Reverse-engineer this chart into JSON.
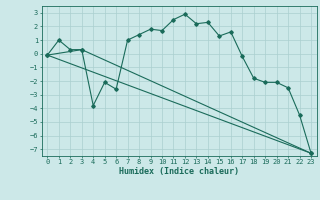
{
  "xlabel": "Humidex (Indice chaleur)",
  "background_color": "#cce8e8",
  "grid_color": "#aacfcf",
  "line_color": "#1a6b5a",
  "xlim": [
    -0.5,
    23.5
  ],
  "ylim": [
    -7.5,
    3.5
  ],
  "yticks": [
    -7,
    -6,
    -5,
    -4,
    -3,
    -2,
    -1,
    0,
    1,
    2,
    3
  ],
  "xticks": [
    0,
    1,
    2,
    3,
    4,
    5,
    6,
    7,
    8,
    9,
    10,
    11,
    12,
    13,
    14,
    15,
    16,
    17,
    18,
    19,
    20,
    21,
    22,
    23
  ],
  "series1_x": [
    0,
    1,
    2,
    3,
    4,
    5,
    6,
    7,
    8,
    9,
    10,
    11,
    12,
    13,
    14,
    15,
    16,
    17,
    18,
    19,
    20,
    21,
    22,
    23
  ],
  "series1_y": [
    -0.1,
    1.0,
    0.3,
    0.3,
    -3.8,
    -2.1,
    -2.6,
    1.0,
    1.4,
    1.8,
    1.7,
    2.5,
    2.9,
    2.2,
    2.3,
    1.3,
    1.6,
    -0.2,
    -1.8,
    -2.1,
    -2.1,
    -2.5,
    -4.5,
    -7.3
  ],
  "series2_x": [
    0,
    3,
    23
  ],
  "series2_y": [
    -0.1,
    0.3,
    -7.3
  ],
  "series3_x": [
    0,
    23
  ],
  "series3_y": [
    -0.1,
    -7.3
  ],
  "tick_labelsize": 5,
  "xlabel_fontsize": 6,
  "marker_size": 1.8,
  "line_width": 0.8
}
